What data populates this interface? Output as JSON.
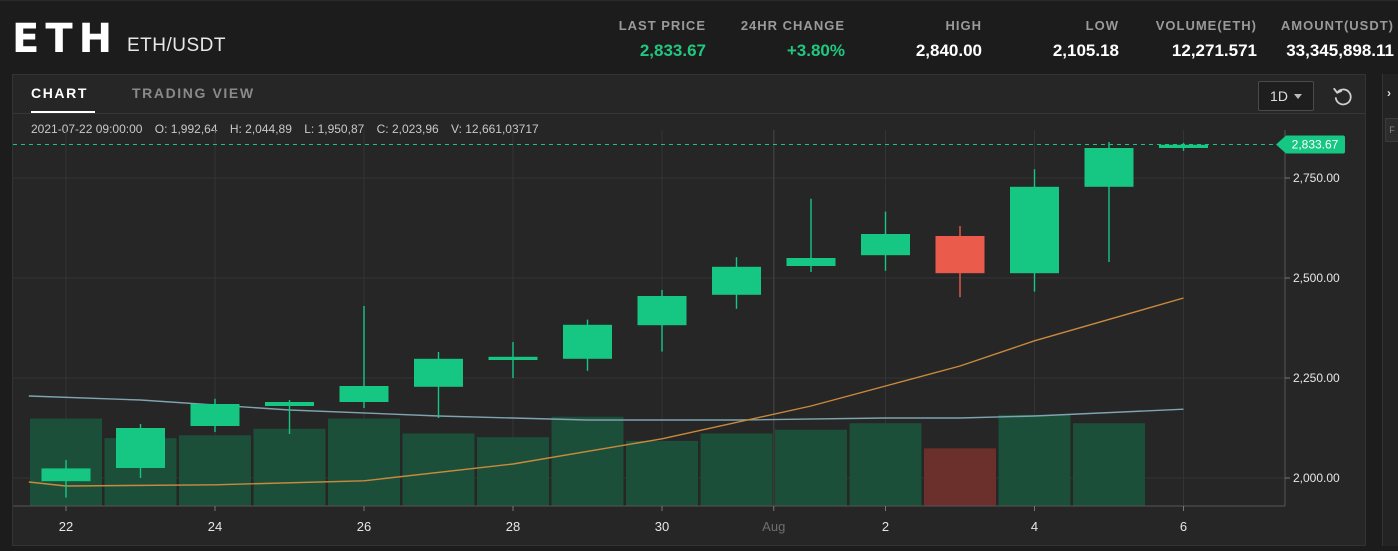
{
  "header": {
    "symbol": "ETH",
    "pair": "ETH/USDT",
    "stats": [
      {
        "label": "LAST PRICE",
        "value": "2,833.67",
        "color": "#1fc87e"
      },
      {
        "label": "24HR CHANGE",
        "value": "+3.80%",
        "color": "#1fc87e"
      },
      {
        "label": "HIGH",
        "value": "2,840.00",
        "color": "#ffffff"
      },
      {
        "label": "LOW",
        "value": "2,105.18",
        "color": "#ffffff"
      },
      {
        "label": "VOLUME(ETH)",
        "value": "12,271.571",
        "color": "#ffffff"
      },
      {
        "label": "AMOUNT(USDT)",
        "value": "33,345,898.11",
        "color": "#ffffff"
      }
    ]
  },
  "tabs": [
    {
      "label": "CHART",
      "active": true
    },
    {
      "label": "TRADING VIEW",
      "active": false
    }
  ],
  "toolbar": {
    "interval": "1D",
    "reset_icon": "reset-icon",
    "interval_caret_icon": "chevron-down-icon"
  },
  "legend": {
    "datetime": "2021-07-22 09:00:00",
    "open": "O: 1,992,64",
    "high": "H: 2,044,89",
    "low": "L: 1,950,87",
    "close": "C: 2,023,96",
    "volume": "V: 12,661,03717"
  },
  "right_strip": {
    "arrow_icon": "chevron-right-icon",
    "cut_text": "F"
  },
  "chart_data": {
    "type": "candlestick",
    "colors": {
      "up": "#16c784",
      "down": "#ea5b4c",
      "ma_short": "#c98a3d",
      "ma_long": "#7fa3b0",
      "last_price": "#16c784"
    },
    "y_ticks": [
      "2,000.00",
      "2,250.00",
      "2,500.00",
      "2,750.00"
    ],
    "y_tick_values": [
      2000,
      2250,
      2500,
      2750
    ],
    "ylim": [
      1920,
      2840
    ],
    "last_price_label": "2,833.67",
    "last_price": 2833.67,
    "x_ticks": [
      {
        "label": "22",
        "day": 0,
        "dim": false
      },
      {
        "label": "24",
        "day": 2,
        "dim": false
      },
      {
        "label": "26",
        "day": 4,
        "dim": false
      },
      {
        "label": "28",
        "day": 6,
        "dim": false
      },
      {
        "label": "30",
        "day": 8,
        "dim": false
      },
      {
        "label": "Aug",
        "day": 9.5,
        "dim": true
      },
      {
        "label": "2",
        "day": 11,
        "dim": false
      },
      {
        "label": "4",
        "day": 13,
        "dim": false
      },
      {
        "label": "6",
        "day": 15,
        "dim": false
      }
    ],
    "candles": [
      {
        "day": 0,
        "open": 1992,
        "high": 2045,
        "low": 1951,
        "close": 2024
      },
      {
        "day": 1,
        "open": 2025,
        "high": 2135,
        "low": 2000,
        "close": 2125
      },
      {
        "day": 2,
        "open": 2130,
        "high": 2198,
        "low": 2115,
        "close": 2185
      },
      {
        "day": 3,
        "open": 2180,
        "high": 2195,
        "low": 2110,
        "close": 2190
      },
      {
        "day": 4,
        "open": 2190,
        "high": 2430,
        "low": 2175,
        "close": 2230
      },
      {
        "day": 5,
        "open": 2228,
        "high": 2315,
        "low": 2150,
        "close": 2298
      },
      {
        "day": 6,
        "open": 2295,
        "high": 2340,
        "low": 2250,
        "close": 2303
      },
      {
        "day": 7,
        "open": 2298,
        "high": 2396,
        "low": 2268,
        "close": 2383
      },
      {
        "day": 8,
        "open": 2382,
        "high": 2470,
        "low": 2316,
        "close": 2455
      },
      {
        "day": 9,
        "open": 2458,
        "high": 2552,
        "low": 2423,
        "close": 2528
      },
      {
        "day": 10,
        "open": 2530,
        "high": 2698,
        "low": 2515,
        "close": 2550
      },
      {
        "day": 11,
        "open": 2557,
        "high": 2666,
        "low": 2518,
        "close": 2610
      },
      {
        "day": 12,
        "open": 2605,
        "high": 2630,
        "low": 2452,
        "close": 2512
      },
      {
        "day": 13,
        "open": 2512,
        "high": 2772,
        "low": 2466,
        "close": 2728
      },
      {
        "day": 14,
        "open": 2728,
        "high": 2840,
        "low": 2540,
        "close": 2825
      },
      {
        "day": 15,
        "open": 2825,
        "high": 2838,
        "low": 2818,
        "close": 2833
      }
    ],
    "volume_bars": [
      {
        "day": 0,
        "volume": 0.94,
        "up": true
      },
      {
        "day": 1,
        "volume": 0.73,
        "up": true
      },
      {
        "day": 2,
        "volume": 0.76,
        "up": true
      },
      {
        "day": 3,
        "volume": 0.83,
        "up": true
      },
      {
        "day": 4,
        "volume": 0.94,
        "up": true
      },
      {
        "day": 5,
        "volume": 0.78,
        "up": true
      },
      {
        "day": 6,
        "volume": 0.74,
        "up": true
      },
      {
        "day": 7,
        "volume": 0.96,
        "up": true
      },
      {
        "day": 8,
        "volume": 0.7,
        "up": true
      },
      {
        "day": 9,
        "volume": 0.78,
        "up": true
      },
      {
        "day": 10,
        "volume": 0.82,
        "up": true
      },
      {
        "day": 11,
        "volume": 0.89,
        "up": true
      },
      {
        "day": 12,
        "volume": 0.62,
        "up": false
      },
      {
        "day": 13,
        "volume": 0.98,
        "up": true
      },
      {
        "day": 14,
        "volume": 0.89,
        "up": true
      }
    ],
    "ma_short": [
      [
        -0.5,
        1990
      ],
      [
        0,
        1980
      ],
      [
        2,
        1983
      ],
      [
        4,
        1993
      ],
      [
        6,
        2035
      ],
      [
        8,
        2098
      ],
      [
        10,
        2180
      ],
      [
        12,
        2280
      ],
      [
        13,
        2343
      ],
      [
        15,
        2450
      ]
    ],
    "ma_long": [
      [
        -0.5,
        2205
      ],
      [
        1,
        2195
      ],
      [
        3,
        2170
      ],
      [
        5,
        2155
      ],
      [
        7,
        2145
      ],
      [
        9,
        2145
      ],
      [
        11,
        2150
      ],
      [
        12,
        2150
      ],
      [
        13,
        2155
      ],
      [
        15,
        2172
      ]
    ]
  }
}
